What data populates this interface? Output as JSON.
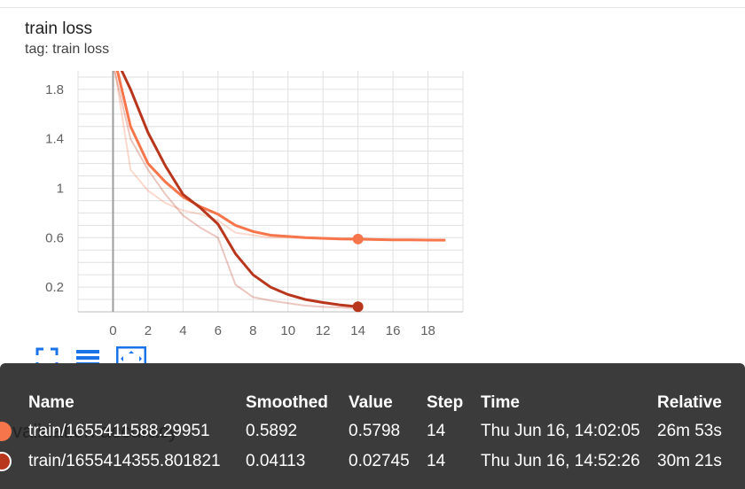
{
  "card": {
    "title": "train loss",
    "tag": "tag: train loss"
  },
  "background_card_title": "validation accuracy",
  "toolbar": {
    "icons": [
      "fullscreen-icon",
      "lines-icon",
      "fit-domain-icon"
    ]
  },
  "chart_data": {
    "type": "line",
    "title": "",
    "xlabel": "",
    "ylabel": "",
    "x_ticks": [
      "0",
      "2",
      "4",
      "6",
      "8",
      "10",
      "12",
      "14",
      "16",
      "18"
    ],
    "y_ticks": [
      "0.2",
      "0.6",
      "1",
      "1.4",
      "1.8"
    ],
    "xlim": [
      -2,
      20
    ],
    "ylim": [
      0,
      1.95
    ],
    "grid": true,
    "series": [
      {
        "name": "train/1655411588.29951",
        "color": "#f7754a",
        "smoothed": [
          [
            0,
            2.1
          ],
          [
            1,
            1.5
          ],
          [
            2,
            1.2
          ],
          [
            3,
            1.05
          ],
          [
            4,
            0.93
          ],
          [
            5,
            0.85
          ],
          [
            6,
            0.79
          ],
          [
            7,
            0.7
          ],
          [
            8,
            0.65
          ],
          [
            9,
            0.62
          ],
          [
            10,
            0.61
          ],
          [
            11,
            0.6
          ],
          [
            12,
            0.595
          ],
          [
            13,
            0.59
          ],
          [
            14,
            0.5892
          ],
          [
            15,
            0.585
          ],
          [
            16,
            0.583
          ],
          [
            17,
            0.582
          ],
          [
            18,
            0.581
          ],
          [
            19,
            0.58
          ]
        ],
        "raw": [
          [
            0,
            2.05
          ],
          [
            1,
            1.15
          ],
          [
            2,
            0.98
          ],
          [
            3,
            0.88
          ],
          [
            4,
            0.82
          ],
          [
            5,
            0.79
          ],
          [
            6,
            0.74
          ],
          [
            7,
            0.64
          ],
          [
            8,
            0.62
          ],
          [
            9,
            0.6
          ],
          [
            10,
            0.6
          ],
          [
            11,
            0.595
          ],
          [
            12,
            0.59
          ],
          [
            13,
            0.585
          ],
          [
            14,
            0.5798
          ],
          [
            15,
            0.58
          ],
          [
            16,
            0.58
          ],
          [
            17,
            0.579
          ],
          [
            18,
            0.579
          ],
          [
            19,
            0.578
          ]
        ]
      },
      {
        "name": "train/1655414355.801821",
        "color": "#b8361c",
        "smoothed": [
          [
            0,
            2.1
          ],
          [
            1,
            1.8
          ],
          [
            2,
            1.45
          ],
          [
            3,
            1.18
          ],
          [
            4,
            0.95
          ],
          [
            5,
            0.84
          ],
          [
            6,
            0.71
          ],
          [
            7,
            0.47
          ],
          [
            8,
            0.3
          ],
          [
            9,
            0.2
          ],
          [
            10,
            0.14
          ],
          [
            11,
            0.1
          ],
          [
            12,
            0.075
          ],
          [
            13,
            0.055
          ],
          [
            14,
            0.04113
          ]
        ],
        "raw": [
          [
            0,
            2.0
          ],
          [
            1,
            1.4
          ],
          [
            2,
            1.15
          ],
          [
            3,
            0.95
          ],
          [
            4,
            0.78
          ],
          [
            5,
            0.68
          ],
          [
            6,
            0.6
          ],
          [
            7,
            0.22
          ],
          [
            8,
            0.12
          ],
          [
            9,
            0.09
          ],
          [
            10,
            0.07
          ],
          [
            11,
            0.05
          ],
          [
            12,
            0.04
          ],
          [
            13,
            0.035
          ],
          [
            14,
            0.02745
          ]
        ]
      }
    ]
  },
  "table": {
    "headers": [
      "Name",
      "Smoothed",
      "Value",
      "Step",
      "Time",
      "Relative"
    ],
    "rows": [
      {
        "name": "train/1655411588.29951",
        "smoothed": "0.5892",
        "value": "0.5798",
        "step": "14",
        "time": "Thu Jun 16, 14:02:05",
        "relative": "26m 53s",
        "color": "#f7754a"
      },
      {
        "name": "train/1655414355.801821",
        "smoothed": "0.04113",
        "value": "0.02745",
        "step": "14",
        "time": "Thu Jun 16, 14:52:26",
        "relative": "30m 21s",
        "color": "#b8361c"
      }
    ]
  }
}
